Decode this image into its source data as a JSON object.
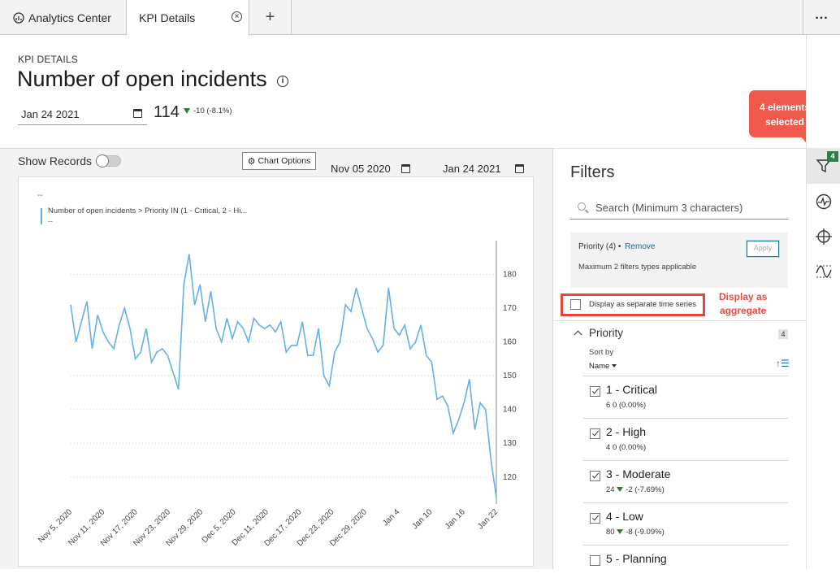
{
  "tabs": [
    {
      "label": "Analytics Center",
      "icon": "analytics-icon"
    },
    {
      "label": "KPI Details",
      "icon": "close-icon"
    }
  ],
  "tab_add": "+",
  "tab_more": "...",
  "header": {
    "eyebrow": "KPI DETAILS",
    "title": "Number of open incidents",
    "date": "Jan 24 2021",
    "kpi_value": "114",
    "kpi_delta": "-10 (-8.1%)"
  },
  "callout_selected": {
    "line1": "4 elements",
    "line2": "selected"
  },
  "chart_panel": {
    "show_records_label": "Show Records",
    "show_records_on": false,
    "chart_options_label": "Chart Options",
    "start_date": "Nov 05 2020",
    "end_date": "Jan 24 2021"
  },
  "chart_data": {
    "type": "line",
    "legend_dash_top": "--",
    "series": [
      {
        "name": "Number of open incidents > Priority IN (1 - Critical, 2 - Hi...",
        "legend_sub": "--",
        "color": "#64b0e8",
        "values": [
          171,
          160,
          166,
          172,
          158,
          168,
          163,
          160,
          158,
          165,
          170,
          164,
          155,
          157,
          164,
          154,
          157,
          158,
          156,
          151,
          146,
          177,
          186,
          171,
          177,
          166,
          175,
          164,
          160,
          167,
          161,
          166,
          164,
          160,
          167,
          165,
          164,
          165,
          163,
          166,
          157,
          159,
          159,
          166,
          156,
          156,
          164,
          150,
          147,
          157,
          160,
          171,
          169,
          176,
          170,
          164,
          161,
          157,
          159,
          176,
          164,
          162,
          165,
          158,
          160,
          165,
          156,
          154,
          143,
          144,
          141,
          133,
          137,
          142,
          149,
          134,
          142,
          140,
          125,
          114
        ]
      }
    ],
    "x_tick_labels": [
      "Nov 5, 2020",
      "Nov 11, 2020",
      "Nov 17, 2020",
      "Nov 23, 2020",
      "Nov 29, 2020",
      "Dec 5, 2020",
      "Dec 11, 2020",
      "Dec 17, 2020",
      "Dec 23, 2020",
      "Dec 29, 2020",
      "Jan 4",
      "Jan 10",
      "Jan 16",
      "Jan 22"
    ],
    "y_ticks": [
      120,
      130,
      140,
      150,
      160,
      170,
      180
    ],
    "ylim": [
      112,
      190
    ],
    "grid": true,
    "axis_position": "right"
  },
  "filters": {
    "title": "Filters",
    "search_placeholder": "Search (Minimum 3 characters)",
    "active_filter": "Priority (4)",
    "bullet": "•",
    "remove_label": "Remove",
    "apply_label": "Apply",
    "note": "Maximum 2 filters types applicable",
    "separate_label": "Display as separate time series",
    "separate_checked": false,
    "aggregate_note": {
      "line1": "Display as",
      "line2": "aggregate"
    },
    "group": {
      "label": "Priority",
      "count": "4",
      "sort_by_label": "Sort by",
      "sort_value": "Name",
      "items": [
        {
          "label": "1 - Critical",
          "value": "6",
          "delta": "0 (0.00%)",
          "down": false,
          "checked": true
        },
        {
          "label": "2 - High",
          "value": "4",
          "delta": "0 (0.00%)",
          "down": false,
          "checked": true
        },
        {
          "label": "3 - Moderate",
          "value": "24",
          "delta": "-2 (-7.69%)",
          "down": true,
          "checked": true
        },
        {
          "label": "4 - Low",
          "value": "80",
          "delta": "-8 (-9.09%)",
          "down": true,
          "checked": true
        },
        {
          "label": "5 - Planning",
          "value": "",
          "delta": "",
          "down": false,
          "checked": false
        }
      ]
    }
  },
  "rail": {
    "badge": "4",
    "icons": [
      "filter-icon",
      "pulse-icon",
      "crosshair-icon",
      "trend-icon"
    ]
  },
  "colors": {
    "accent": "#2e7d4f",
    "callout": "#ef5a4c",
    "line": "#64b0e8",
    "down": "#2e7d32"
  }
}
